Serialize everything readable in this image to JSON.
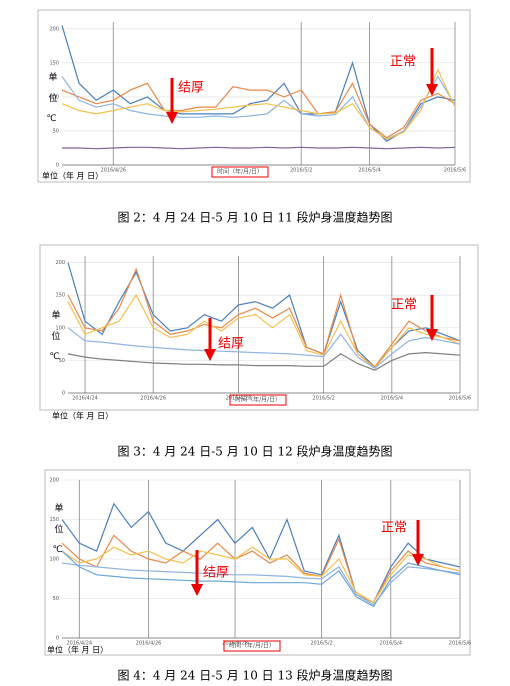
{
  "chart_data": [
    {
      "type": "line",
      "title": "图 2：4 月 24 日-5 月 10 日 11 段炉身温度趋势图",
      "ylabel": "单位℃",
      "xlabel": "时间（年/月/日）",
      "unit_label": "单位（年 月 日）",
      "annotations": [
        "结厚",
        "正常"
      ],
      "categories": [
        null,
        null,
        null,
        "2016/4/26",
        null,
        null,
        null,
        null,
        null,
        null,
        null,
        null,
        null,
        null,
        "2016/5/2",
        null,
        null,
        null,
        "2016/5/4",
        null,
        null,
        null,
        null,
        "2016/5/6"
      ],
      "ylim": [
        0,
        210
      ],
      "yticks": [
        0,
        50,
        100,
        150,
        200
      ],
      "series": [
        {
          "color": "#4a7ebb",
          "values": [
            205,
            120,
            95,
            110,
            90,
            100,
            80,
            75,
            75,
            75,
            75,
            90,
            95,
            120,
            75,
            75,
            78,
            150,
            60,
            35,
            50,
            90,
            100,
            95
          ]
        },
        {
          "color": "#e8894a",
          "values": [
            110,
            100,
            90,
            95,
            110,
            120,
            80,
            80,
            85,
            85,
            115,
            110,
            110,
            100,
            110,
            75,
            78,
            120,
            60,
            40,
            55,
            95,
            105,
            90
          ]
        },
        {
          "color": "#8fb4e3",
          "values": [
            130,
            95,
            85,
            90,
            80,
            75,
            72,
            70,
            70,
            72,
            70,
            72,
            75,
            95,
            75,
            72,
            74,
            100,
            55,
            38,
            50,
            85,
            130,
            88
          ]
        },
        {
          "color": "#f2c14e",
          "values": [
            90,
            80,
            75,
            80,
            85,
            90,
            80,
            78,
            80,
            82,
            85,
            88,
            90,
            85,
            80,
            75,
            76,
            90,
            55,
            38,
            48,
            80,
            140,
            85
          ]
        },
        {
          "color": "#8064a2",
          "values": [
            25,
            25,
            24,
            25,
            26,
            26,
            25,
            24,
            25,
            26,
            25,
            25,
            26,
            25,
            26,
            25,
            25,
            26,
            25,
            24,
            25,
            26,
            25,
            26
          ]
        }
      ]
    },
    {
      "type": "line",
      "title": "图 3：4 月 24 日-5 月 10 日 12 段炉身温度趋势图",
      "ylabel": "单位℃",
      "xlabel": "时间（年/月/日）",
      "unit_label": "单位（年 月 日）",
      "annotations": [
        "结厚",
        "正常"
      ],
      "categories": [
        null,
        "2016/4/24",
        null,
        null,
        null,
        "2016/4/26",
        null,
        null,
        null,
        null,
        "2016/4/28",
        null,
        null,
        null,
        null,
        "2016/5/2",
        null,
        null,
        null,
        "2016/5/4",
        null,
        null,
        null,
        "2016/5/6"
      ],
      "ylim": [
        0,
        210
      ],
      "yticks": [
        0,
        50,
        100,
        150,
        200
      ],
      "series": [
        {
          "color": "#4a7ebb",
          "values": [
            200,
            110,
            90,
            140,
            185,
            120,
            95,
            100,
            120,
            110,
            135,
            140,
            130,
            150,
            70,
            60,
            140,
            65,
            40,
            70,
            95,
            100,
            90,
            80
          ]
        },
        {
          "color": "#e8894a",
          "values": [
            150,
            100,
            95,
            130,
            190,
            110,
            90,
            95,
            105,
            100,
            120,
            130,
            115,
            130,
            70,
            60,
            150,
            60,
            40,
            75,
            110,
            95,
            85,
            80
          ]
        },
        {
          "color": "#f2c14e",
          "values": [
            140,
            90,
            100,
            110,
            150,
            100,
            85,
            90,
            110,
            95,
            115,
            120,
            100,
            120,
            65,
            58,
            110,
            60,
            38,
            70,
            100,
            90,
            85,
            75
          ]
        },
        {
          "color": "#8fb4e3",
          "values": [
            100,
            80,
            78,
            75,
            72,
            70,
            68,
            66,
            65,
            64,
            63,
            62,
            61,
            60,
            58,
            56,
            90,
            55,
            38,
            60,
            80,
            85,
            80,
            75
          ]
        },
        {
          "color": "#7f7f7f",
          "values": [
            60,
            55,
            52,
            50,
            48,
            46,
            45,
            44,
            44,
            43,
            43,
            42,
            42,
            42,
            41,
            41,
            60,
            45,
            35,
            50,
            60,
            62,
            60,
            58
          ]
        }
      ]
    },
    {
      "type": "line",
      "title": "图 4：4 月 24 日-5 月 10 日 13 段炉身温度趋势图",
      "ylabel": "单位℃",
      "xlabel": "时间（年/月/日）",
      "unit_label": "单位（年 月 日）",
      "annotations": [
        "结厚",
        "正常"
      ],
      "categories": [
        null,
        "2016/4/24",
        null,
        null,
        null,
        "2016/4/26",
        null,
        null,
        null,
        null,
        "2016/4/28",
        null,
        null,
        null,
        null,
        "2016/5/2",
        null,
        null,
        null,
        "2016/5/4",
        null,
        null,
        null,
        "2016/5/6"
      ],
      "ylim": [
        0,
        200
      ],
      "yticks": [
        0,
        50,
        100,
        150,
        200
      ],
      "series": [
        {
          "color": "#4a7ebb",
          "values": [
            150,
            120,
            110,
            170,
            140,
            160,
            120,
            110,
            130,
            150,
            120,
            140,
            100,
            150,
            85,
            80,
            130,
            55,
            45,
            90,
            120,
            100,
            95,
            90
          ]
        },
        {
          "color": "#e8894a",
          "values": [
            120,
            100,
            90,
            130,
            110,
            100,
            95,
            110,
            100,
            120,
            100,
            110,
            95,
            105,
            82,
            78,
            125,
            55,
            45,
            85,
            110,
            95,
            90,
            85
          ]
        },
        {
          "color": "#f2c14e",
          "values": [
            110,
            95,
            100,
            115,
            105,
            110,
            100,
            95,
            110,
            105,
            100,
            115,
            100,
            100,
            80,
            78,
            100,
            58,
            45,
            80,
            105,
            100,
            90,
            85
          ]
        },
        {
          "color": "#8fb4e3",
          "values": [
            95,
            92,
            90,
            88,
            86,
            85,
            84,
            83,
            82,
            81,
            80,
            80,
            79,
            78,
            76,
            75,
            90,
            55,
            42,
            70,
            90,
            88,
            85,
            82
          ]
        },
        {
          "color": "#6aa6d6",
          "values": [
            110,
            90,
            80,
            78,
            76,
            75,
            74,
            73,
            72,
            72,
            71,
            70,
            70,
            70,
            70,
            68,
            85,
            52,
            40,
            75,
            95,
            90,
            85,
            80
          ]
        }
      ]
    }
  ]
}
